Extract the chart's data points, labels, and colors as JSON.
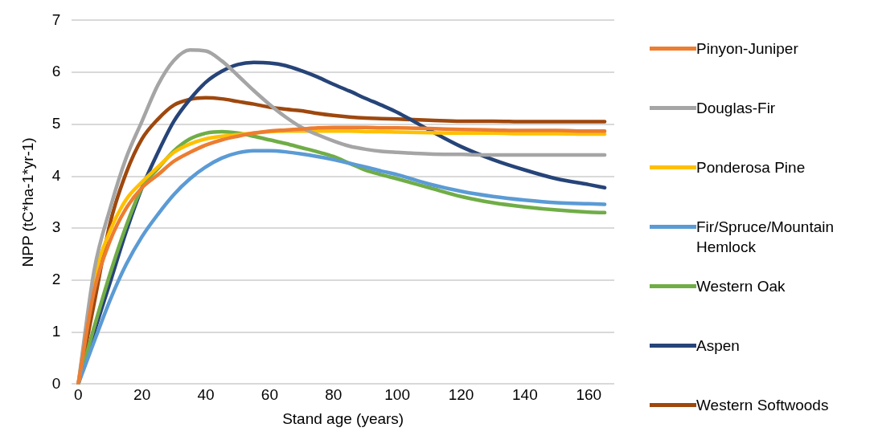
{
  "chart_data": {
    "type": "line",
    "xlabel": "Stand age (years)",
    "ylabel": "NPP (tC*ha-1*yr-1)",
    "x": [
      0,
      5,
      10,
      15,
      20,
      25,
      30,
      35,
      40,
      45,
      50,
      55,
      60,
      65,
      70,
      75,
      80,
      85,
      90,
      95,
      100,
      110,
      120,
      130,
      140,
      150,
      160,
      165
    ],
    "xlim": [
      -2,
      168
    ],
    "xticks": [
      0,
      20,
      40,
      60,
      80,
      100,
      120,
      140,
      160
    ],
    "ylim": [
      0,
      7
    ],
    "yticks": [
      0,
      1,
      2,
      3,
      4,
      5,
      6,
      7
    ],
    "grid": "y",
    "legend": "right",
    "marker": "none",
    "line_style": "solid",
    "series": [
      {
        "name": "Pinyon-Juniper",
        "color": "#ed7d31",
        "values": [
          0,
          1.8,
          2.76,
          3.38,
          3.78,
          4.03,
          4.29,
          4.46,
          4.6,
          4.7,
          4.77,
          4.83,
          4.87,
          4.89,
          4.91,
          4.93,
          4.94,
          4.94,
          4.94,
          4.93,
          4.93,
          4.92,
          4.9,
          4.89,
          4.88,
          4.88,
          4.87,
          4.87
        ]
      },
      {
        "name": "Douglas-Fir",
        "color": "#a5a5a5",
        "values": [
          0,
          2.19,
          3.38,
          4.35,
          5.06,
          5.76,
          6.23,
          6.43,
          6.41,
          6.22,
          5.94,
          5.65,
          5.38,
          5.14,
          4.94,
          4.8,
          4.68,
          4.58,
          4.52,
          4.48,
          4.46,
          4.43,
          4.42,
          4.41,
          4.41,
          4.41,
          4.41,
          4.41
        ]
      },
      {
        "name": "Ponderosa Pine",
        "color": "#ffc000",
        "values": [
          0,
          2.0,
          2.95,
          3.55,
          3.89,
          4.18,
          4.46,
          4.62,
          4.72,
          4.77,
          4.8,
          4.83,
          4.86,
          4.87,
          4.87,
          4.87,
          4.87,
          4.87,
          4.86,
          4.86,
          4.85,
          4.84,
          4.83,
          4.83,
          4.82,
          4.82,
          4.81,
          4.81
        ]
      },
      {
        "name": "Fir/Spruce/Mountain Hemlock",
        "color": "#5b9bd5",
        "values": [
          0,
          0.82,
          1.62,
          2.3,
          2.84,
          3.27,
          3.65,
          3.95,
          4.18,
          4.35,
          4.45,
          4.49,
          4.49,
          4.47,
          4.43,
          4.38,
          4.32,
          4.25,
          4.18,
          4.1,
          4.03,
          3.85,
          3.71,
          3.61,
          3.54,
          3.49,
          3.47,
          3.46
        ]
      },
      {
        "name": "Western Oak",
        "color": "#70ad47",
        "values": [
          0,
          1.1,
          2.13,
          3.04,
          3.78,
          4.15,
          4.49,
          4.72,
          4.83,
          4.86,
          4.83,
          4.77,
          4.7,
          4.63,
          4.55,
          4.47,
          4.38,
          4.25,
          4.12,
          4.03,
          3.95,
          3.78,
          3.61,
          3.49,
          3.41,
          3.35,
          3.31,
          3.3
        ]
      },
      {
        "name": "Aspen",
        "color": "#264478",
        "values": [
          0,
          1.0,
          1.96,
          2.93,
          3.78,
          4.46,
          5.06,
          5.48,
          5.81,
          6.02,
          6.15,
          6.19,
          6.18,
          6.13,
          6.03,
          5.91,
          5.77,
          5.64,
          5.5,
          5.37,
          5.23,
          4.89,
          4.57,
          4.32,
          4.12,
          3.95,
          3.84,
          3.78
        ]
      },
      {
        "name": "Western Softwoods",
        "color": "#9e480e",
        "values": [
          0,
          1.56,
          3.1,
          4.06,
          4.72,
          5.1,
          5.37,
          5.48,
          5.51,
          5.49,
          5.44,
          5.39,
          5.33,
          5.29,
          5.26,
          5.21,
          5.17,
          5.14,
          5.12,
          5.11,
          5.1,
          5.08,
          5.06,
          5.06,
          5.05,
          5.05,
          5.05,
          5.05
        ]
      }
    ]
  }
}
